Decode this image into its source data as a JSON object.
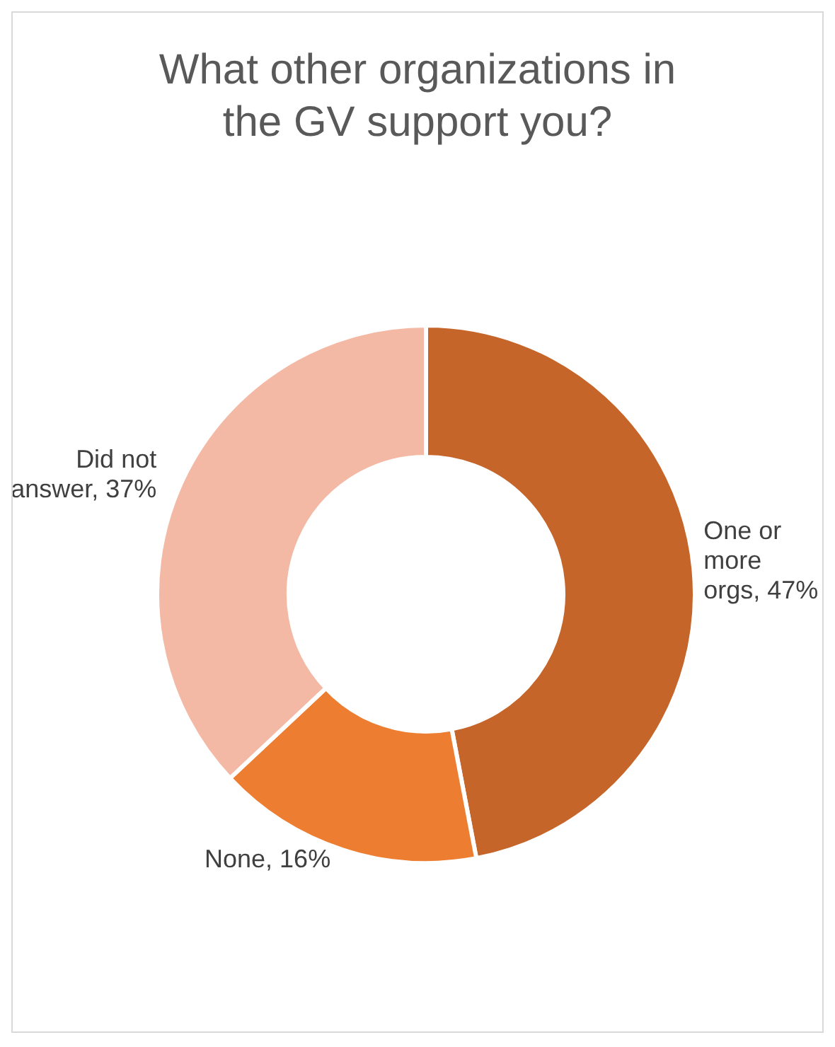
{
  "chart_data": {
    "type": "donut",
    "title": "What other organizations in the GV support you?",
    "categories": [
      "One or more orgs",
      "None",
      "Did not answer"
    ],
    "values": [
      47,
      16,
      37
    ],
    "value_labels": [
      "47%",
      "16%",
      "37%"
    ],
    "colors": [
      "#c5652a",
      "#ed7d31",
      "#f4b9a5"
    ],
    "legend": false
  }
}
